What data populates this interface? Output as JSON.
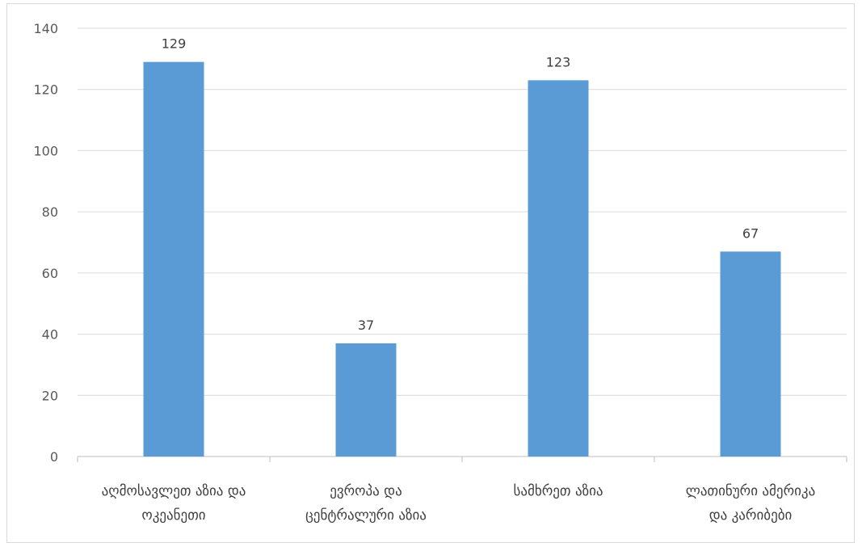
{
  "chart_data": {
    "type": "bar",
    "categories": [
      [
        "აღმოსავლეთ აზია და",
        "ოკეანეთი"
      ],
      [
        "ევროპა და",
        "ცენტრალური აზია"
      ],
      [
        "სამხრეთ აზია"
      ],
      [
        "ლათინური ამერიკა",
        "და კარიბები"
      ]
    ],
    "values": [
      129,
      37,
      123,
      67
    ],
    "data_labels": [
      "129",
      "37",
      "123",
      "67"
    ],
    "y_ticks": [
      "0",
      "20",
      "40",
      "60",
      "80",
      "100",
      "120",
      "140"
    ],
    "ylim": [
      0,
      140
    ],
    "grid": true,
    "bar_color": "#5b9bd5",
    "grid_color": "#d9d9d9",
    "title": "",
    "xlabel": "",
    "ylabel": ""
  }
}
